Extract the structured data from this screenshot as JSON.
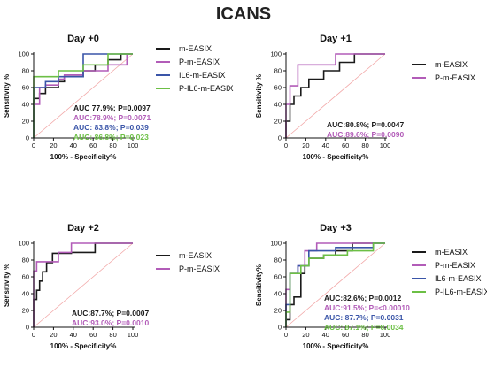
{
  "title": "ICANS",
  "colors": {
    "m-EASIX": "#1a1a1a",
    "P-m-EASIX": "#b25cb8",
    "IL6-m-EASIX": "#3a55a8",
    "P-IL6-m-EASIX": "#6cbf45",
    "reference": "#f2a8a8"
  },
  "chart_data": [
    {
      "type": "line",
      "title": "Day +0",
      "xlabel": "100% - Specificity%",
      "ylabel": "Sensitivity %",
      "xlim": [
        0,
        100
      ],
      "ylim": [
        0,
        100
      ],
      "xticks": [
        0,
        20,
        40,
        60,
        80,
        100
      ],
      "yticks": [
        0,
        20,
        40,
        60,
        80,
        100
      ],
      "grid": false,
      "legend_position": "right",
      "series": [
        {
          "name": "m-EASIX",
          "x": [
            0,
            0,
            6,
            6,
            12,
            12,
            25,
            25,
            31,
            31,
            50,
            50,
            62,
            62,
            75,
            75,
            88,
            88,
            100
          ],
          "y": [
            0,
            47,
            47,
            53,
            53,
            60,
            60,
            67,
            67,
            73,
            73,
            80,
            80,
            87,
            87,
            93,
            93,
            100,
            100
          ]
        },
        {
          "name": "P-m-EASIX",
          "x": [
            0,
            0,
            6,
            6,
            12,
            12,
            25,
            25,
            31,
            31,
            50,
            50,
            75,
            75,
            94,
            94,
            100
          ],
          "y": [
            0,
            40,
            40,
            60,
            60,
            63,
            63,
            70,
            70,
            75,
            75,
            80,
            80,
            87,
            87,
            100,
            100
          ]
        },
        {
          "name": "IL6-m-EASIX",
          "x": [
            0,
            0,
            12,
            12,
            25,
            25,
            50,
            50,
            100
          ],
          "y": [
            0,
            60,
            60,
            67,
            67,
            73,
            73,
            100,
            100
          ]
        },
        {
          "name": "P-IL6-m-EASIX",
          "x": [
            0,
            0,
            25,
            25,
            50,
            50,
            75,
            75,
            100
          ],
          "y": [
            0,
            73,
            73,
            80,
            80,
            87,
            87,
            100,
            100
          ]
        }
      ],
      "auc": [
        {
          "series": "m-EASIX",
          "text": "AUC 77.9%; P=0.0097"
        },
        {
          "series": "P-m-EASIX",
          "text": "AUC:78.9%; P=0.0071"
        },
        {
          "series": "IL6-m-EASIX",
          "text": "AUC: 83.8%; P=0.039"
        },
        {
          "series": "P-IL6-m-EASIX",
          "text": "AUC: 86.8%; P=0.023"
        }
      ]
    },
    {
      "type": "line",
      "title": "Day +1",
      "xlabel": "100% - Specificity%",
      "ylabel": "Sensitivity %",
      "xlim": [
        0,
        100
      ],
      "ylim": [
        0,
        100
      ],
      "xticks": [
        0,
        20,
        40,
        60,
        80,
        100
      ],
      "yticks": [
        0,
        20,
        40,
        60,
        80,
        100
      ],
      "grid": false,
      "legend_position": "right",
      "series": [
        {
          "name": "m-EASIX",
          "x": [
            0,
            0,
            4,
            4,
            8,
            8,
            15,
            15,
            23,
            23,
            38,
            38,
            54,
            54,
            69,
            69,
            100
          ],
          "y": [
            0,
            20,
            20,
            40,
            40,
            50,
            50,
            60,
            60,
            70,
            70,
            80,
            80,
            90,
            90,
            100,
            100
          ]
        },
        {
          "name": "P-m-EASIX",
          "x": [
            0,
            0,
            4,
            4,
            12,
            12,
            50,
            50,
            100
          ],
          "y": [
            0,
            40,
            40,
            62,
            62,
            87,
            87,
            100,
            100
          ]
        }
      ],
      "auc": [
        {
          "series": "m-EASIX",
          "text": "AUC:80.8%; P=0.0047"
        },
        {
          "series": "P-m-EASIX",
          "text": "AUC:89.6%; P=0.0090"
        }
      ]
    },
    {
      "type": "line",
      "title": "Day +2",
      "xlabel": "100% - Specificity%",
      "ylabel": "Sensitivity %",
      "xlim": [
        0,
        100
      ],
      "ylim": [
        0,
        100
      ],
      "xticks": [
        0,
        20,
        40,
        60,
        80,
        100
      ],
      "yticks": [
        0,
        20,
        40,
        60,
        80,
        100
      ],
      "grid": false,
      "legend_position": "right",
      "series": [
        {
          "name": "m-EASIX",
          "x": [
            0,
            0,
            3,
            3,
            6,
            6,
            9,
            9,
            13,
            13,
            19,
            19,
            38,
            38,
            62,
            62,
            100
          ],
          "y": [
            0,
            33,
            33,
            44,
            44,
            55,
            55,
            66,
            66,
            77,
            77,
            88,
            88,
            89,
            89,
            100,
            100
          ]
        },
        {
          "name": "P-m-EASIX",
          "x": [
            0,
            0,
            3,
            3,
            25,
            25,
            38,
            38,
            100
          ],
          "y": [
            0,
            67,
            67,
            78,
            78,
            89,
            89,
            100,
            100
          ]
        }
      ],
      "auc": [
        {
          "series": "m-EASIX",
          "text": "AUC:87.7%; P=0.0007"
        },
        {
          "series": "P-m-EASIX",
          "text": "AUC:93.0%; P=0.0010"
        }
      ]
    },
    {
      "type": "line",
      "title": "Day +3",
      "xlabel": "100% - Specificity%",
      "ylabel": "Sensitivity%",
      "xlim": [
        0,
        100
      ],
      "ylim": [
        0,
        100
      ],
      "xticks": [
        0,
        20,
        40,
        60,
        80,
        100
      ],
      "yticks": [
        0,
        20,
        40,
        60,
        80,
        100
      ],
      "grid": false,
      "legend_position": "right",
      "series": [
        {
          "name": "m-EASIX",
          "x": [
            0,
            0,
            4,
            4,
            8,
            8,
            15,
            15,
            19,
            19,
            23,
            23,
            38,
            38,
            50,
            50,
            67,
            67,
            100
          ],
          "y": [
            0,
            9,
            9,
            27,
            27,
            36,
            36,
            64,
            64,
            73,
            73,
            82,
            82,
            86,
            86,
            91,
            91,
            100,
            100
          ]
        },
        {
          "name": "P-m-EASIX",
          "x": [
            0,
            0,
            4,
            4,
            12,
            12,
            19,
            19,
            31,
            31,
            100
          ],
          "y": [
            0,
            45,
            45,
            64,
            64,
            73,
            73,
            91,
            91,
            100,
            100
          ]
        },
        {
          "name": "IL6-m-EASIX",
          "x": [
            0,
            0,
            4,
            4,
            12,
            12,
            23,
            23,
            50,
            50,
            88,
            88,
            100
          ],
          "y": [
            0,
            27,
            27,
            64,
            64,
            73,
            73,
            91,
            91,
            95,
            95,
            100,
            100
          ]
        },
        {
          "name": "P-IL6-m-EASIX",
          "x": [
            0,
            0,
            4,
            4,
            15,
            15,
            23,
            23,
            38,
            38,
            62,
            62,
            88,
            88,
            100
          ],
          "y": [
            0,
            18,
            18,
            64,
            64,
            73,
            73,
            82,
            82,
            86,
            86,
            91,
            91,
            100,
            100
          ]
        }
      ],
      "auc": [
        {
          "series": "m-EASIX",
          "text": "AUC:82.6%; P=0.0012"
        },
        {
          "series": "P-m-EASIX",
          "text": "AUC:91.5%; P=<0.00010"
        },
        {
          "series": "IL6-m-EASIX",
          "text": "AUC: 87.7%; P=0.0031"
        },
        {
          "series": "P-IL6-m-EASIX",
          "text": "AUC: 87.1%; P=0.0034"
        }
      ]
    }
  ]
}
